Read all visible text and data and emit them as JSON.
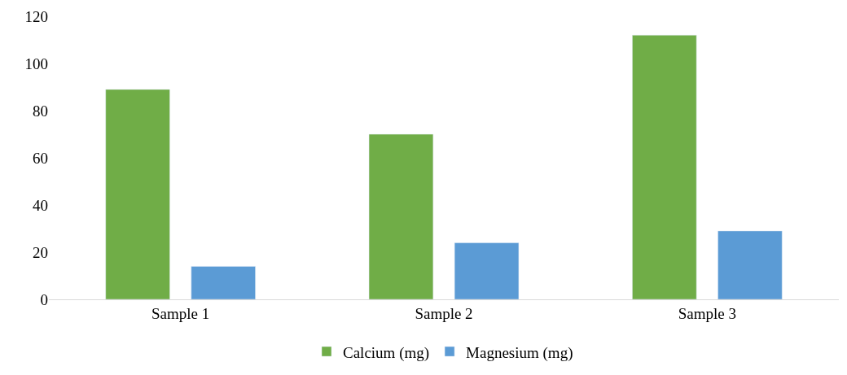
{
  "chart_data": {
    "type": "bar",
    "categories": [
      "Sample 1",
      "Sample 2",
      "Sample 3"
    ],
    "series": [
      {
        "name": "Calcium (mg)",
        "color": "#70ad47",
        "values": [
          89,
          70,
          112
        ]
      },
      {
        "name": "Magnesium (mg)",
        "color": "#5b9bd5",
        "values": [
          14,
          24,
          29
        ]
      }
    ],
    "ylim": [
      0,
      120
    ],
    "yticks": [
      0,
      20,
      40,
      60,
      80,
      100,
      120
    ],
    "legend": "bottom"
  }
}
